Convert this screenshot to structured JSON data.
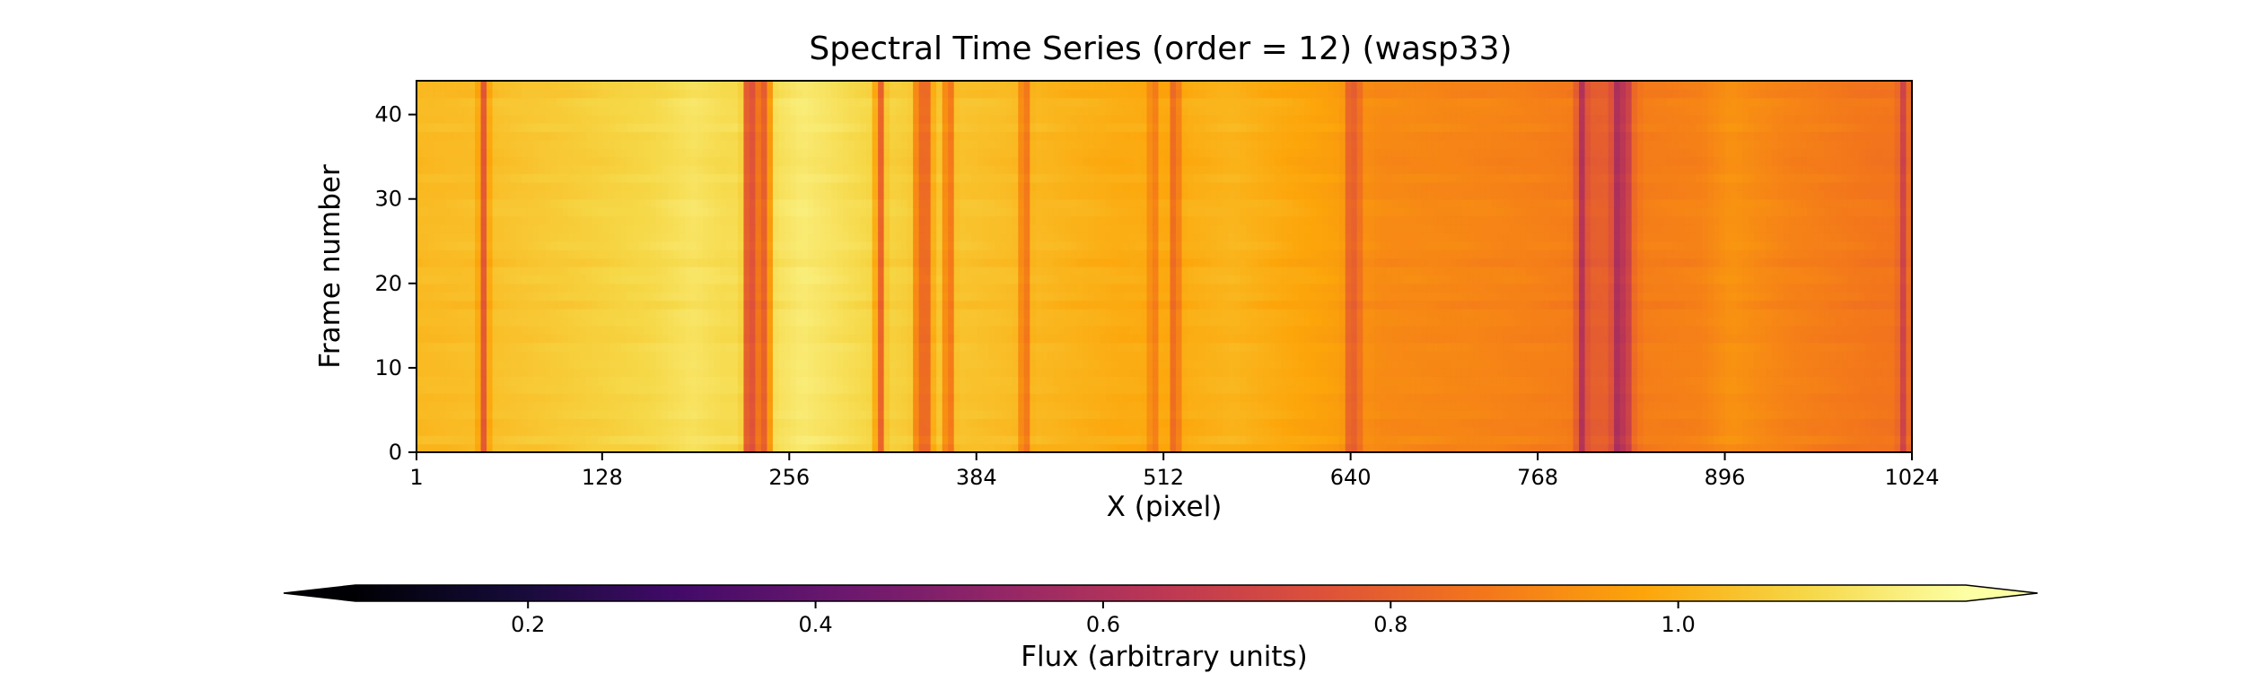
{
  "chart_data": {
    "type": "heatmap",
    "title": "Spectral Time Series (order = 12) (wasp33)",
    "xlabel": "X (pixel)",
    "ylabel": "Frame number",
    "xlim": [
      1,
      1024
    ],
    "ylim": [
      0,
      44
    ],
    "xticks": [
      1,
      128,
      256,
      384,
      512,
      640,
      768,
      896,
      1024
    ],
    "yticks": [
      0,
      10,
      20,
      30,
      40
    ],
    "n_frames": 44,
    "colormap": "inferno",
    "colorbar": {
      "label": "Flux (arbitrary units)",
      "vmin": 0.08,
      "vmax": 1.2,
      "ticks": [
        0.2,
        0.4,
        0.6,
        0.8,
        1.0
      ],
      "extend": "both",
      "orientation": "horizontal",
      "placement": "bottom"
    },
    "continuum_profile": [
      {
        "x": 1,
        "flux": 1.02
      },
      {
        "x": 40,
        "flux": 1.03
      },
      {
        "x": 100,
        "flux": 1.06
      },
      {
        "x": 160,
        "flux": 1.09
      },
      {
        "x": 190,
        "flux": 1.12
      },
      {
        "x": 210,
        "flux": 1.1
      },
      {
        "x": 240,
        "flux": 1.1
      },
      {
        "x": 265,
        "flux": 1.14
      },
      {
        "x": 300,
        "flux": 1.1
      },
      {
        "x": 340,
        "flux": 1.06
      },
      {
        "x": 420,
        "flux": 1.02
      },
      {
        "x": 480,
        "flux": 0.99
      },
      {
        "x": 520,
        "flux": 0.99
      },
      {
        "x": 560,
        "flux": 1.01
      },
      {
        "x": 600,
        "flux": 0.98
      },
      {
        "x": 630,
        "flux": 0.96
      },
      {
        "x": 660,
        "flux": 0.91
      },
      {
        "x": 720,
        "flux": 0.9
      },
      {
        "x": 790,
        "flux": 0.88
      },
      {
        "x": 800,
        "flux": 0.79
      },
      {
        "x": 830,
        "flux": 0.8
      },
      {
        "x": 840,
        "flux": 0.88
      },
      {
        "x": 880,
        "flux": 0.89
      },
      {
        "x": 900,
        "flux": 0.93
      },
      {
        "x": 940,
        "flux": 0.89
      },
      {
        "x": 1000,
        "flux": 0.86
      },
      {
        "x": 1024,
        "flux": 0.86
      }
    ],
    "absorption_lines": [
      {
        "x": 47,
        "flux": 0.78
      },
      {
        "x": 228,
        "flux": 0.75
      },
      {
        "x": 233,
        "flux": 0.8
      },
      {
        "x": 240,
        "flux": 0.76
      },
      {
        "x": 318,
        "flux": 0.8
      },
      {
        "x": 345,
        "flux": 0.8
      },
      {
        "x": 351,
        "flux": 0.84
      },
      {
        "x": 365,
        "flux": 0.82
      },
      {
        "x": 417,
        "flux": 0.83
      },
      {
        "x": 505,
        "flux": 0.86
      },
      {
        "x": 520,
        "flux": 0.8
      },
      {
        "x": 640,
        "flux": 0.78
      },
      {
        "x": 645,
        "flux": 0.84
      },
      {
        "x": 798,
        "flux": 0.62
      },
      {
        "x": 822,
        "flux": 0.6
      },
      {
        "x": 828,
        "flux": 0.62
      },
      {
        "x": 1018,
        "flux": 0.7
      }
    ]
  }
}
